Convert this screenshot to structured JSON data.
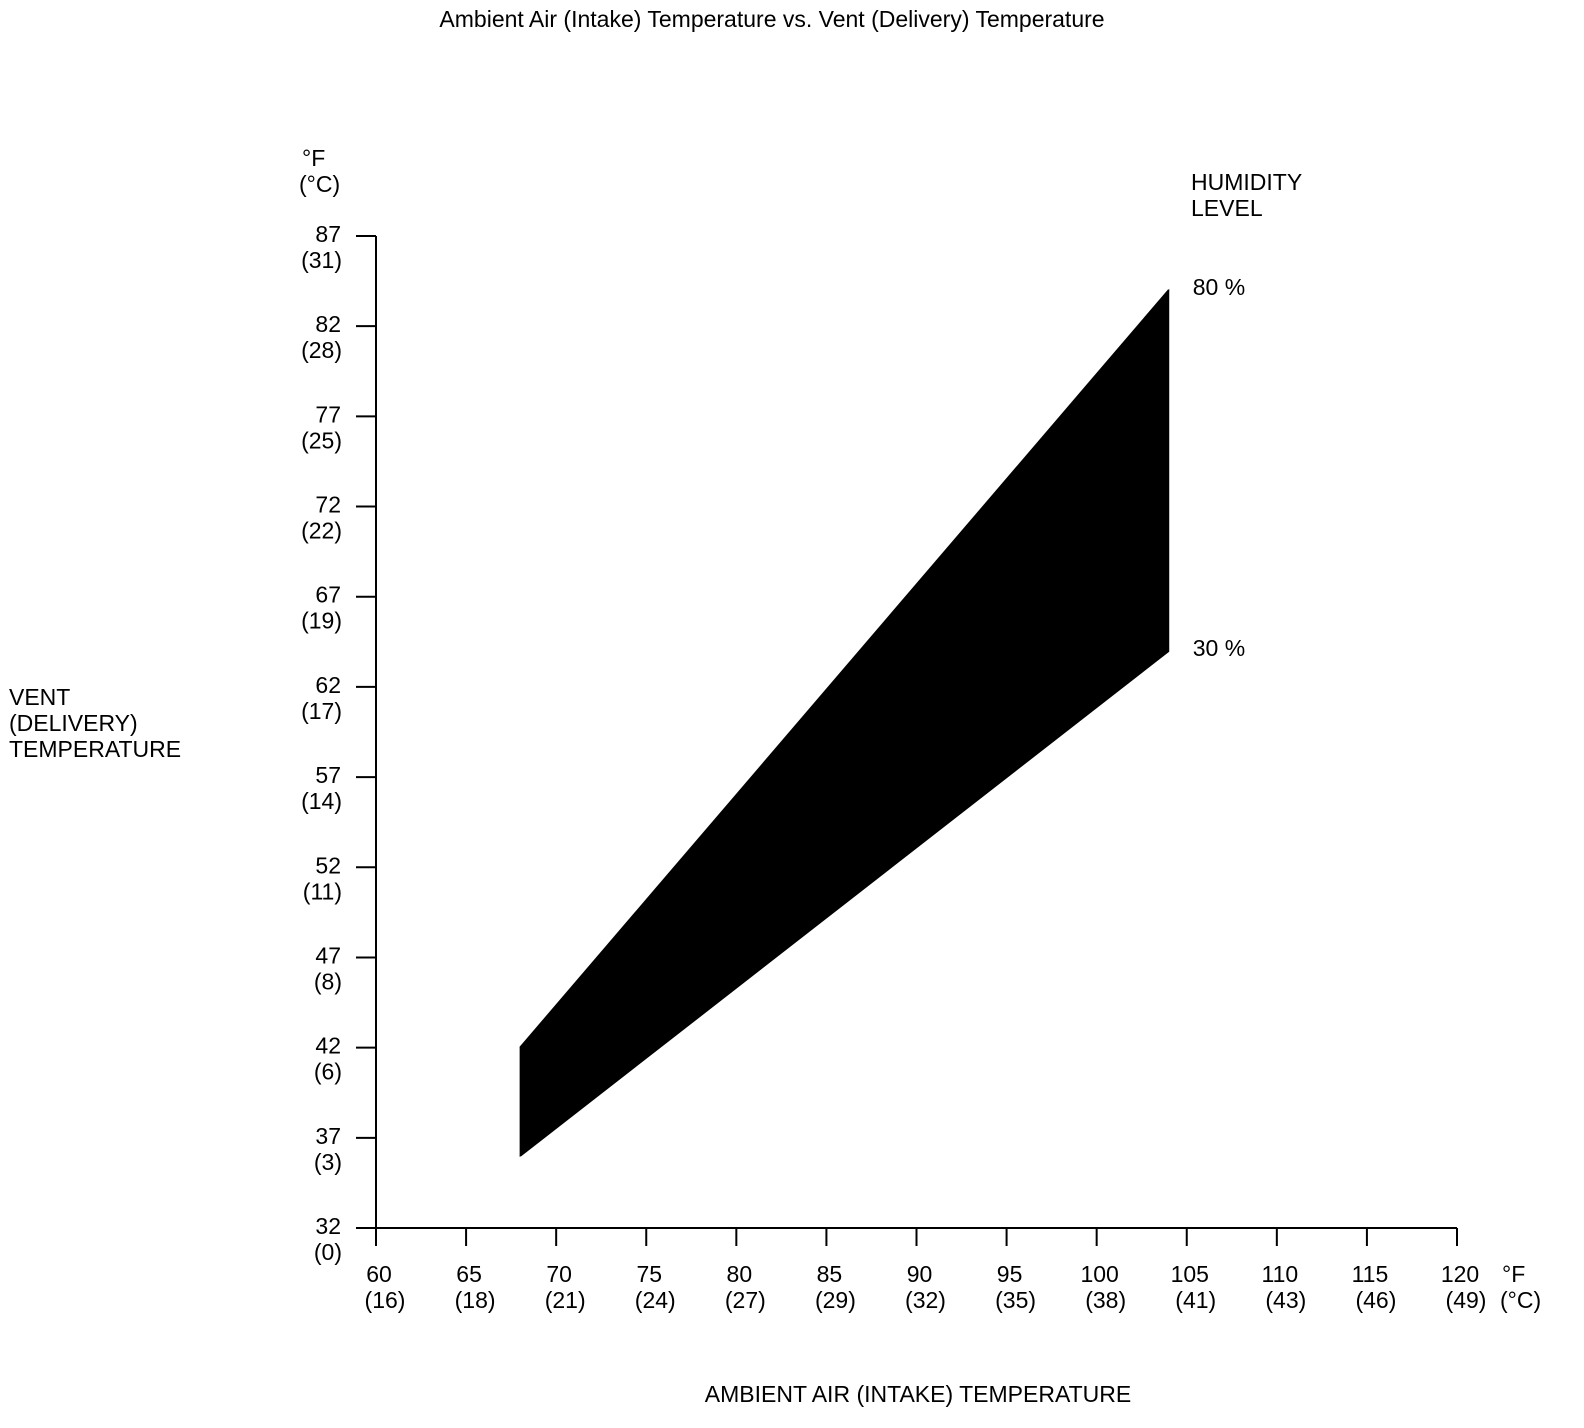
{
  "chart_data": {
    "type": "area",
    "title": "Ambient Air (Intake) Temperature vs. Vent (Delivery) Temperature",
    "xlabel": "AMBIENT AIR (INTAKE) TEMPERATURE",
    "ylabel": [
      "VENT",
      "(DELIVERY)",
      "TEMPERATURE"
    ],
    "x_unit": [
      "°F",
      "(°C)"
    ],
    "y_unit": [
      "°F",
      "(°C)"
    ],
    "xlim": [
      60,
      120
    ],
    "ylim": [
      32,
      87
    ],
    "x_ticks": [
      {
        "f": "60",
        "c": "(16)",
        "value": 60
      },
      {
        "f": "65",
        "c": "(18)",
        "value": 65
      },
      {
        "f": "70",
        "c": "(21)",
        "value": 70
      },
      {
        "f": "75",
        "c": "(24)",
        "value": 75
      },
      {
        "f": "80",
        "c": "(27)",
        "value": 80
      },
      {
        "f": "85",
        "c": "(29)",
        "value": 85
      },
      {
        "f": "90",
        "c": "(32)",
        "value": 90
      },
      {
        "f": "95",
        "c": "(35)",
        "value": 95
      },
      {
        "f": "100",
        "c": "(38)",
        "value": 100
      },
      {
        "f": "105",
        "c": "(41)",
        "value": 105
      },
      {
        "f": "110",
        "c": "(43)",
        "value": 110
      },
      {
        "f": "115",
        "c": "(46)",
        "value": 115
      },
      {
        "f": "120",
        "c": "(49)",
        "value": 120
      }
    ],
    "y_ticks": [
      {
        "f": "32",
        "c": "(0)",
        "value": 32
      },
      {
        "f": "37",
        "c": "(3)",
        "value": 37
      },
      {
        "f": "42",
        "c": "(6)",
        "value": 42
      },
      {
        "f": "47",
        "c": "(8)",
        "value": 47
      },
      {
        "f": "52",
        "c": "(11)",
        "value": 52
      },
      {
        "f": "57",
        "c": "(14)",
        "value": 57
      },
      {
        "f": "62",
        "c": "(17)",
        "value": 62
      },
      {
        "f": "67",
        "c": "(19)",
        "value": 67
      },
      {
        "f": "72",
        "c": "(22)",
        "value": 72
      },
      {
        "f": "77",
        "c": "(25)",
        "value": 77
      },
      {
        "f": "82",
        "c": "(28)",
        "value": 82
      },
      {
        "f": "87",
        "c": "(31)",
        "value": 87
      }
    ],
    "legend_title": [
      "HUMIDITY",
      "LEVEL"
    ],
    "series": [
      {
        "name": "80 %",
        "x": [
          68,
          104
        ],
        "y": [
          42,
          84
        ]
      },
      {
        "name": "30 %",
        "x": [
          68,
          104
        ],
        "y": [
          36,
          64
        ]
      }
    ],
    "fill_color": "#000000",
    "grid": false
  }
}
